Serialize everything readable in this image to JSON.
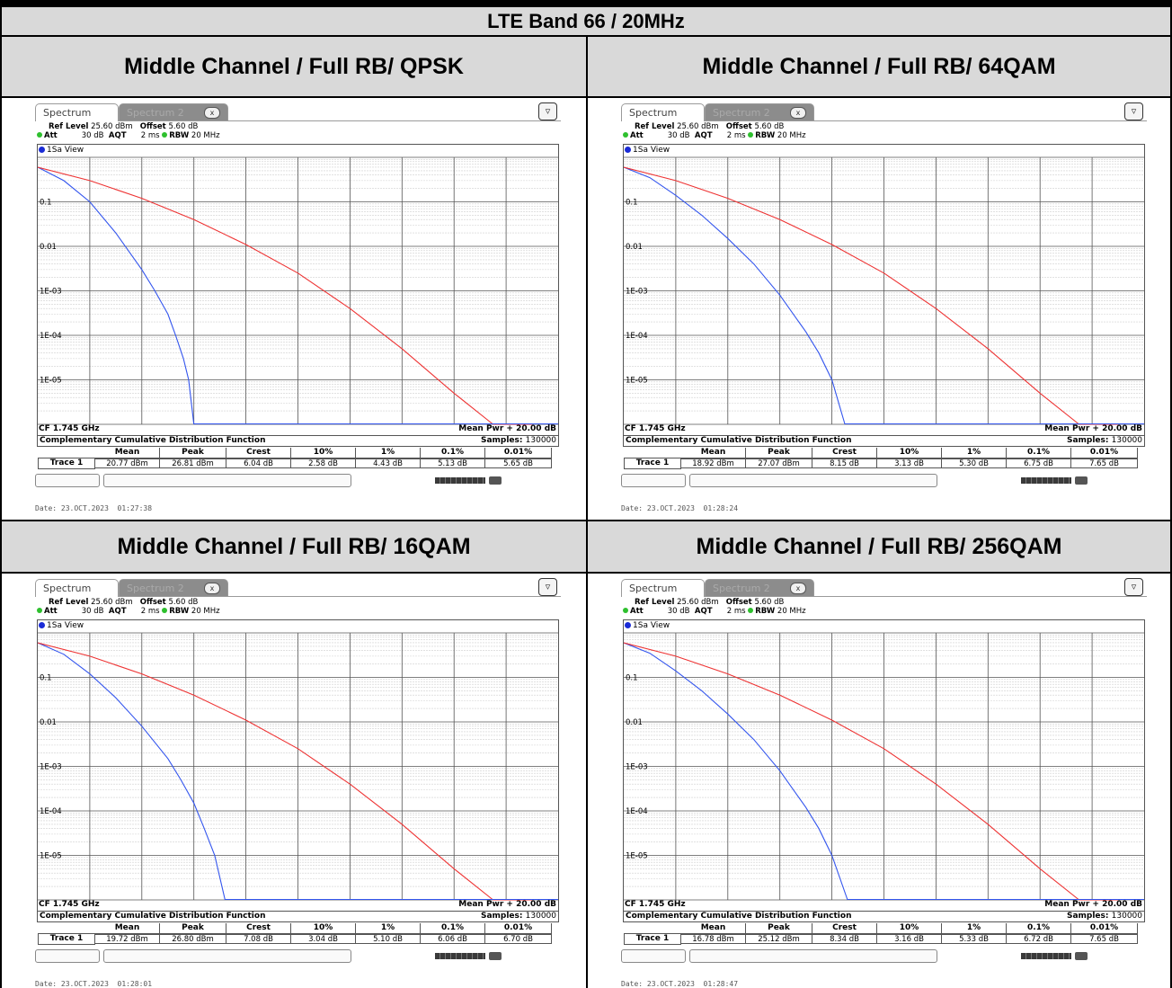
{
  "table": {
    "title": "LTE Band 66 / 20MHz",
    "panels": [
      {
        "header": "Middle Channel / Full RB/ QPSK",
        "results": {
          "mean": "20.77 dBm",
          "peak": "26.81 dBm",
          "crest": "6.04 dB",
          "p10": "2.58 dB",
          "p1": "4.43 dB",
          "p01": "5.13 dB",
          "p001": "5.65 dB"
        },
        "date": "Date: 23.OCT.2023  01:27:38"
      },
      {
        "header": "Middle Channel / Full RB/ 64QAM",
        "results": {
          "mean": "18.92 dBm",
          "peak": "27.07 dBm",
          "crest": "8.15 dB",
          "p10": "3.13 dB",
          "p1": "5.30 dB",
          "p01": "6.75 dB",
          "p001": "7.65 dB"
        },
        "date": "Date: 23.OCT.2023  01:28:24"
      },
      {
        "header": "Middle Channel / Full RB/ 16QAM",
        "results": {
          "mean": "19.72 dBm",
          "peak": "26.80 dBm",
          "crest": "7.08 dB",
          "p10": "3.04 dB",
          "p1": "5.10 dB",
          "p01": "6.06 dB",
          "p001": "6.70 dB"
        },
        "date": "Date: 23.OCT.2023  01:28:01"
      },
      {
        "header": "Middle Channel / Full RB/ 256QAM",
        "results": {
          "mean": "16.78 dBm",
          "peak": "25.12 dBm",
          "crest": "8.34 dB",
          "p10": "3.16 dB",
          "p1": "5.33 dB",
          "p01": "6.72 dB",
          "p001": "7.65 dB"
        },
        "date": "Date: 23.OCT.2023  01:28:47"
      }
    ]
  },
  "analyzer": {
    "tab_active": "Spectrum",
    "tab_inactive": "Spectrum 2",
    "tab_close": "x",
    "ref_level_label": "Ref Level",
    "ref_level_value": "25.60 dBm",
    "offset_label": "Offset",
    "offset_value": "5.60 dB",
    "att_label": "Att",
    "att_value": "30 dB",
    "aqt_label": "AQT",
    "aqt_value": "2 ms",
    "rbw_label": "RBW",
    "rbw_value": "20 MHz",
    "view_label": "1Sa View",
    "cf_label": "CF 1.745 GHz",
    "mean_pwr_label": "Mean Pwr + 20.00 dB",
    "ccdf_title": "Complementary Cumulative Distribution Function",
    "samples_label": "Samples:",
    "samples_value": "130000",
    "trace_label": "Trace 1",
    "col_mean": "Mean",
    "col_peak": "Peak",
    "col_crest": "Crest",
    "col_p10": "10%",
    "col_p1": "1%",
    "col_p01": "0.1%",
    "col_p001": "0.01%"
  },
  "chart_data": [
    {
      "type": "line",
      "yscale": "log",
      "ylabels": [
        "0.1",
        "0.01",
        "1E-03",
        "1E-04",
        "1E-05"
      ],
      "xlim": [
        0,
        20
      ],
      "ylim": [
        1e-06,
        1
      ],
      "series": [
        {
          "color": "#3355ee",
          "x": [
            0,
            1,
            2,
            3,
            4,
            4.5,
            5,
            5.3,
            5.6,
            5.8,
            6
          ],
          "y": [
            0.6,
            0.3,
            0.1,
            0.02,
            0.003,
            0.001,
            0.0003,
            0.0001,
            3e-05,
            1e-05,
            1e-06
          ]
        },
        {
          "color": "#ee3333",
          "x": [
            0,
            2,
            4,
            6,
            8,
            10,
            12,
            14,
            16,
            17.5,
            19
          ],
          "y": [
            0.6,
            0.3,
            0.12,
            0.04,
            0.011,
            0.0025,
            0.0004,
            5e-05,
            5e-06,
            1e-06,
            5e-07
          ]
        }
      ]
    },
    {
      "type": "line",
      "yscale": "log",
      "ylabels": [
        "0.1",
        "0.01",
        "1E-03",
        "1E-04",
        "1E-05"
      ],
      "xlim": [
        0,
        20
      ],
      "ylim": [
        1e-06,
        1
      ],
      "series": [
        {
          "color": "#3355ee",
          "x": [
            0,
            1,
            2,
            3,
            4,
            5,
            6,
            7,
            7.5,
            8,
            8.5
          ],
          "y": [
            0.6,
            0.35,
            0.14,
            0.05,
            0.015,
            0.004,
            0.0008,
            0.00012,
            4e-05,
            1e-05,
            1e-06
          ]
        },
        {
          "color": "#ee3333",
          "x": [
            0,
            2,
            4,
            6,
            8,
            10,
            12,
            14,
            16,
            17.5,
            19
          ],
          "y": [
            0.6,
            0.3,
            0.12,
            0.04,
            0.011,
            0.0025,
            0.0004,
            5e-05,
            5e-06,
            1e-06,
            5e-07
          ]
        }
      ]
    },
    {
      "type": "line",
      "yscale": "log",
      "ylabels": [
        "0.1",
        "0.01",
        "1E-03",
        "1E-04",
        "1E-05"
      ],
      "xlim": [
        0,
        20
      ],
      "ylim": [
        1e-06,
        1
      ],
      "series": [
        {
          "color": "#3355ee",
          "x": [
            0,
            1,
            2,
            3,
            4,
            5,
            5.5,
            6,
            6.4,
            6.8,
            7.2
          ],
          "y": [
            0.6,
            0.33,
            0.12,
            0.035,
            0.008,
            0.0015,
            0.0005,
            0.00015,
            4e-05,
            1e-05,
            1e-06
          ]
        },
        {
          "color": "#ee3333",
          "x": [
            0,
            2,
            4,
            6,
            8,
            10,
            12,
            14,
            16,
            17.5,
            19
          ],
          "y": [
            0.6,
            0.3,
            0.12,
            0.04,
            0.011,
            0.0025,
            0.0004,
            5e-05,
            5e-06,
            1e-06,
            5e-07
          ]
        }
      ]
    },
    {
      "type": "line",
      "yscale": "log",
      "ylabels": [
        "0.1",
        "0.01",
        "1E-03",
        "1E-04",
        "1E-05"
      ],
      "xlim": [
        0,
        20
      ],
      "ylim": [
        1e-06,
        1
      ],
      "series": [
        {
          "color": "#3355ee",
          "x": [
            0,
            1,
            2,
            3,
            4,
            5,
            6,
            7,
            7.5,
            8,
            8.6
          ],
          "y": [
            0.6,
            0.35,
            0.14,
            0.05,
            0.015,
            0.004,
            0.0008,
            0.00012,
            4e-05,
            1e-05,
            1e-06
          ]
        },
        {
          "color": "#ee3333",
          "x": [
            0,
            2,
            4,
            6,
            8,
            10,
            12,
            14,
            16,
            17.5,
            19
          ],
          "y": [
            0.6,
            0.3,
            0.12,
            0.04,
            0.011,
            0.0025,
            0.0004,
            5e-05,
            5e-06,
            1e-06,
            5e-07
          ]
        }
      ]
    }
  ]
}
